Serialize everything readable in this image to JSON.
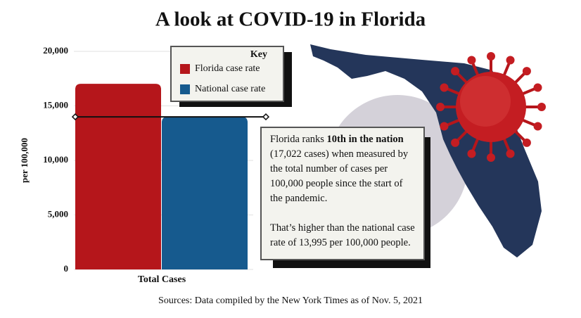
{
  "chart_data": {
    "type": "bar",
    "title": "A look at COVID-19 in Florida",
    "y_label": "per 100,000",
    "categories": [
      "Total Cases"
    ],
    "series": [
      {
        "name": "Florida case rate",
        "color": "#b5161b",
        "values": [
          17022
        ]
      },
      {
        "name": "National case rate",
        "color": "#165a8e",
        "values": [
          13995
        ]
      }
    ],
    "ylim": [
      0,
      20000
    ],
    "yticks": [
      0,
      {
        "value": 5000,
        "label": "5,000"
      },
      {
        "value": 10000,
        "label": "10,000"
      },
      {
        "value": 15000,
        "label": "15,000"
      },
      {
        "value": 20000,
        "label": "20,000"
      }
    ],
    "grid": true,
    "legend_title": "Key",
    "annotation": {
      "lead": "Florida ranks",
      "emphasis": "10th in the nation",
      "rest": "(17,022 cases) when measured by the total number of cases per 100,000 people since the start of the pandemic.",
      "second": "That’s higher than the national case rate of 13,995 per 100,000 people."
    },
    "source": "Sources: Data compiled by the New York Times as of Nov. 5, 2021"
  }
}
